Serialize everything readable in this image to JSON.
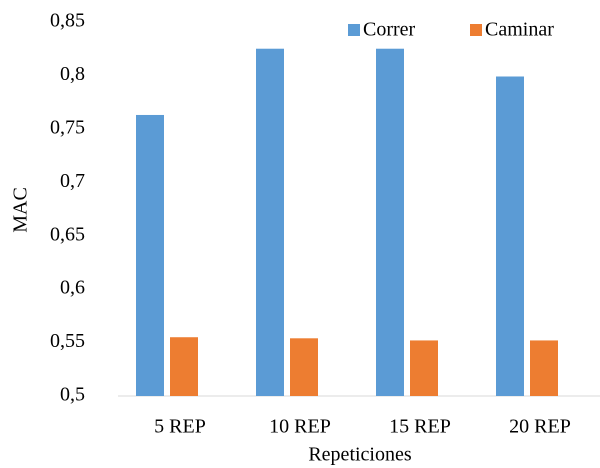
{
  "chart_data": {
    "type": "bar",
    "categories": [
      "5 REP",
      "10 REP",
      "15 REP",
      "20 REP"
    ],
    "series": [
      {
        "name": "Correr",
        "color": "#5b9bd5",
        "values": [
          0.763,
          0.825,
          0.825,
          0.799
        ]
      },
      {
        "name": "Caminar",
        "color": "#ed7d31",
        "values": [
          0.555,
          0.554,
          0.552,
          0.552
        ]
      }
    ],
    "x_label": "Repeticiones",
    "y_label": "MAC",
    "ylim": [
      0.5,
      0.85
    ],
    "yticks": [
      {
        "value": 0.5,
        "label": "0,5"
      },
      {
        "value": 0.55,
        "label": "0,55"
      },
      {
        "value": 0.6,
        "label": "0,6"
      },
      {
        "value": 0.65,
        "label": "0,65"
      },
      {
        "value": 0.7,
        "label": "0,7"
      },
      {
        "value": 0.75,
        "label": "0,75"
      },
      {
        "value": 0.8,
        "label": "0,8"
      },
      {
        "value": 0.85,
        "label": "0,85"
      }
    ],
    "grid": false,
    "legend": "top-right"
  }
}
